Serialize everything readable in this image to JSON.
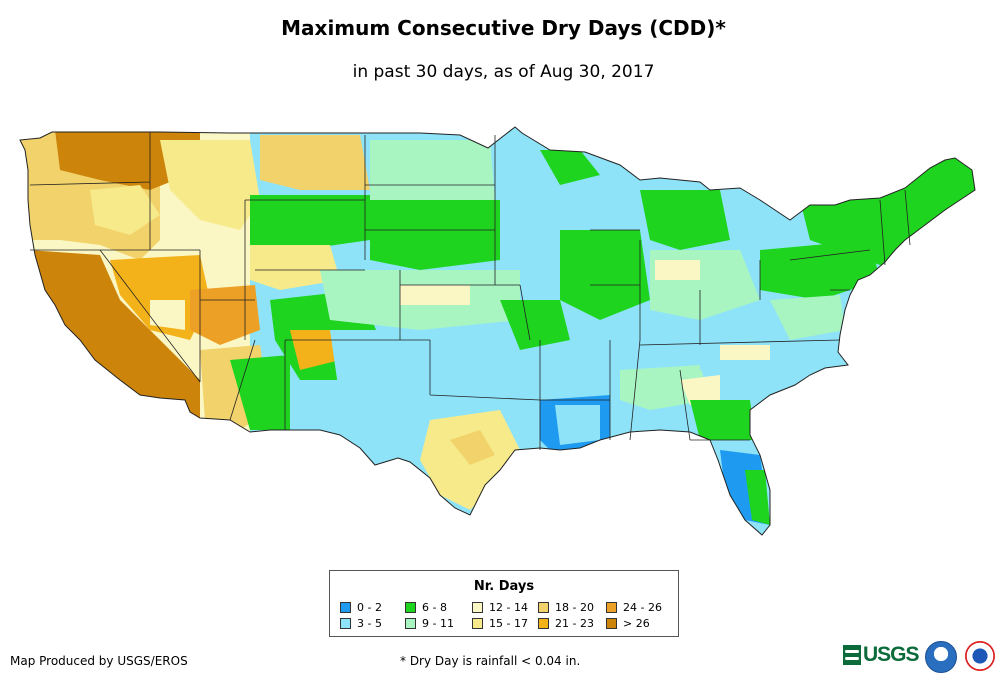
{
  "title": "Maximum Consecutive Dry Days (CDD)*",
  "subtitle": "in past 30 days, as of Aug 30, 2017",
  "legend": {
    "title": "Nr. Days",
    "items": [
      {
        "label": "0 - 2",
        "color": "#1e9bf0"
      },
      {
        "label": "3 - 5",
        "color": "#8ee3f8"
      },
      {
        "label": "6 - 8",
        "color": "#1fd41f"
      },
      {
        "label": "9 - 11",
        "color": "#a8f5c2"
      },
      {
        "label": "12 - 14",
        "color": "#fbf7c4"
      },
      {
        "label": "15 - 17",
        "color": "#f7ea8a"
      },
      {
        "label": "18 - 20",
        "color": "#f2d26a"
      },
      {
        "label": "21 - 23",
        "color": "#f3b21a"
      },
      {
        "label": "24 - 26",
        "color": "#eda026"
      },
      {
        "label": "> 26",
        "color": "#cd840b"
      }
    ]
  },
  "footer": {
    "credit": "Map Produced by USGS/EROS",
    "footnote": "* Dry Day is rainfall < 0.04 in.",
    "logo_text": "USGS"
  },
  "logos": [
    "usgs-logo",
    "noaa-logo",
    "nws-logo"
  ]
}
